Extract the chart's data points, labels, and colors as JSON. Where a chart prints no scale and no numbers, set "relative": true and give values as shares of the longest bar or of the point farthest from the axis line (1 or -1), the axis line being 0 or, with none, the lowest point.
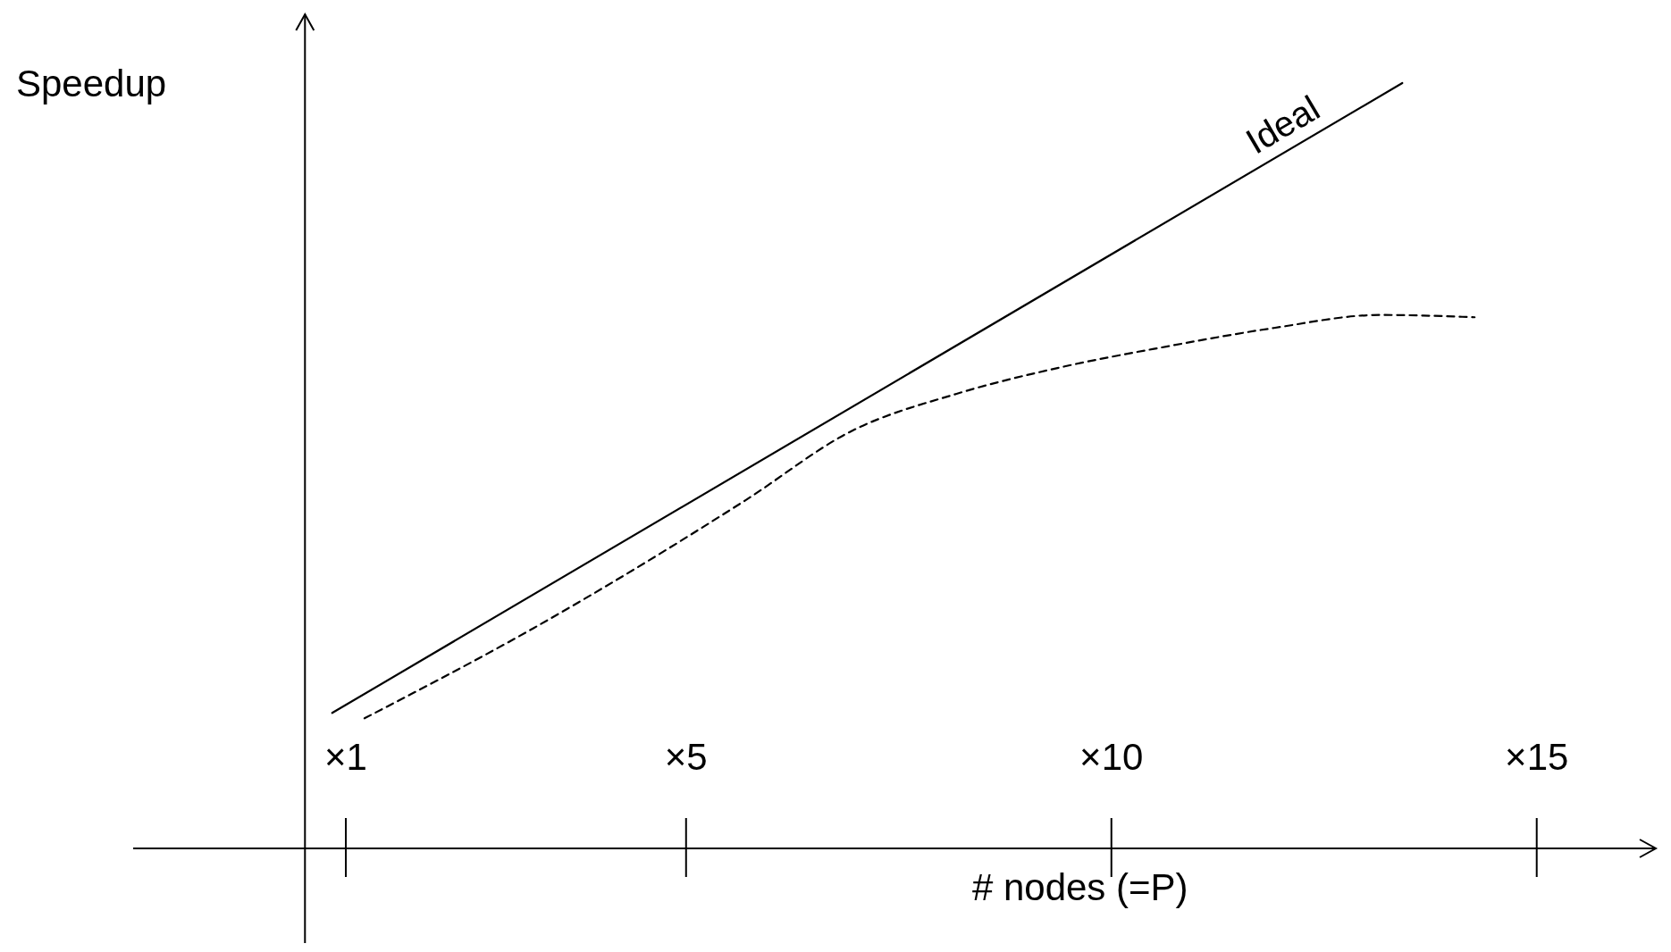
{
  "chart_data": {
    "type": "line",
    "xlabel": "# nodes (=P)",
    "ylabel": "Speedup",
    "relative": true,
    "xlim": [
      -1.5,
      16.4
    ],
    "ref_lines": [
      {
        "axis": "x",
        "value": 0.52,
        "color": "#000000"
      }
    ],
    "xticks": [
      {
        "value": 1,
        "label": "×1"
      },
      {
        "value": 5,
        "label": "×5"
      },
      {
        "value": 10,
        "label": "×10"
      },
      {
        "value": 15,
        "label": "×15"
      }
    ],
    "series": [
      {
        "name": "Ideal",
        "color": "#000000",
        "line_style": "solid",
        "x": [
          0.84,
          13.42
        ],
        "values": [
          0.177,
          1.0
        ]
      },
      {
        "color": "#000000",
        "line_style": "dashed",
        "x": [
          1.22,
          3.21,
          5.7,
          6.94,
          8.18,
          9.42,
          10.66,
          11.91,
          13.15,
          14.27
        ],
        "values": [
          0.17,
          0.288,
          0.455,
          0.545,
          0.594,
          0.629,
          0.656,
          0.68,
          0.697,
          0.694
        ]
      }
    ]
  }
}
